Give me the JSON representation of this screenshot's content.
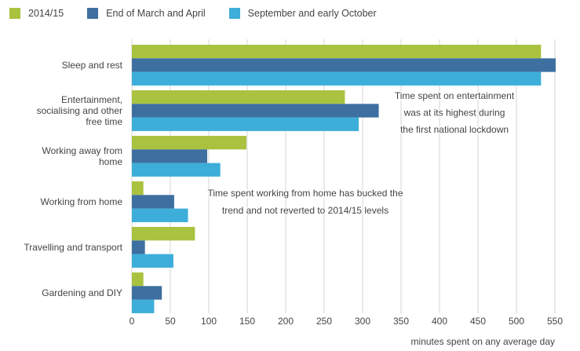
{
  "chart_data": {
    "type": "bar",
    "orientation": "horizontal",
    "categories": [
      "Sleep and rest",
      "Entertainment, socialising and other free time",
      "Working away from home",
      "Working from home",
      "Travelling and transport",
      "Gardening and DIY"
    ],
    "series": [
      {
        "name": "2014/15",
        "color": "#a9c23f",
        "values": [
          532,
          277,
          149,
          15,
          82,
          15
        ]
      },
      {
        "name": "End of March and April",
        "color": "#3d6fa1",
        "values": [
          551,
          321,
          98,
          55,
          17,
          39
        ]
      },
      {
        "name": "September and early October",
        "color": "#3daed9",
        "values": [
          532,
          295,
          115,
          73,
          54,
          29
        ]
      }
    ],
    "xlabel": "minutes spent on any average day",
    "xlim": [
      0,
      550
    ],
    "xticks": [
      "0",
      "50",
      "100",
      "150",
      "200",
      "250",
      "300",
      "350",
      "400",
      "450",
      "500",
      "550"
    ],
    "grid": "vertical",
    "legend_position": "top-left",
    "annotations": [
      {
        "lines": [
          "Time spent on entertainment",
          "was at its highest during",
          "the first national lockdown"
        ]
      },
      {
        "lines": [
          "Time spent working from home has bucked the",
          "trend and not reverted to 2014/15 levels"
        ]
      }
    ]
  }
}
